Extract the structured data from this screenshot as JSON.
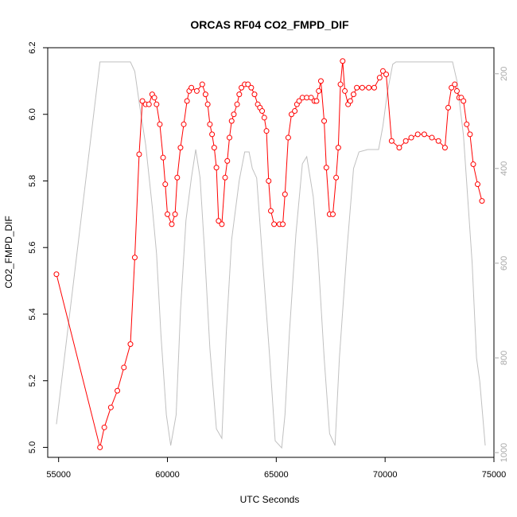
{
  "chart_data": {
    "type": "line",
    "title": "ORCAS RF04 CO2_FMPD_DIF",
    "xlabel": "UTC Seconds",
    "ylabel": "CO2_FMPD_DIF",
    "xlim": [
      54500,
      75000
    ],
    "ylim": [
      4.97,
      6.2
    ],
    "x_ticks": [
      55000,
      60000,
      65000,
      70000,
      75000
    ],
    "y_ticks": [
      5.0,
      5.2,
      5.4,
      5.6,
      5.8,
      6.0,
      6.2
    ],
    "y_tick_labels": [
      "5.0",
      "5.2",
      "5.4",
      "5.6",
      "5.8",
      "6.0",
      "6.2"
    ],
    "right_axis": {
      "lim": [
        1010,
        145
      ],
      "ticks": [
        200,
        400,
        600,
        800,
        1000
      ],
      "color": "#a9a9a9"
    },
    "grid": false,
    "series": [
      {
        "color": "#ff0000",
        "style": "line+open-circle",
        "points": [
          [
            54900,
            5.52
          ],
          [
            56900,
            5.0
          ],
          [
            57100,
            5.06
          ],
          [
            57400,
            5.12
          ],
          [
            57700,
            5.17
          ],
          [
            58000,
            5.24
          ],
          [
            58300,
            5.31
          ],
          [
            58500,
            5.57
          ],
          [
            58700,
            5.88
          ],
          [
            58850,
            6.04
          ],
          [
            59000,
            6.03
          ],
          [
            59150,
            6.03
          ],
          [
            59300,
            6.06
          ],
          [
            59400,
            6.05
          ],
          [
            59500,
            6.03
          ],
          [
            59650,
            5.97
          ],
          [
            59800,
            5.87
          ],
          [
            59900,
            5.79
          ],
          [
            60000,
            5.7
          ],
          [
            60200,
            5.67
          ],
          [
            60350,
            5.7
          ],
          [
            60450,
            5.81
          ],
          [
            60600,
            5.9
          ],
          [
            60750,
            5.97
          ],
          [
            60900,
            6.04
          ],
          [
            61000,
            6.07
          ],
          [
            61100,
            6.08
          ],
          [
            61350,
            6.07
          ],
          [
            61600,
            6.09
          ],
          [
            61750,
            6.06
          ],
          [
            61850,
            6.03
          ],
          [
            61950,
            5.97
          ],
          [
            62050,
            5.94
          ],
          [
            62150,
            5.9
          ],
          [
            62250,
            5.84
          ],
          [
            62350,
            5.68
          ],
          [
            62500,
            5.67
          ],
          [
            62650,
            5.81
          ],
          [
            62750,
            5.86
          ],
          [
            62850,
            5.93
          ],
          [
            62950,
            5.98
          ],
          [
            63050,
            6.0
          ],
          [
            63200,
            6.03
          ],
          [
            63300,
            6.06
          ],
          [
            63400,
            6.08
          ],
          [
            63550,
            6.09
          ],
          [
            63700,
            6.09
          ],
          [
            63850,
            6.08
          ],
          [
            64000,
            6.06
          ],
          [
            64150,
            6.03
          ],
          [
            64250,
            6.02
          ],
          [
            64350,
            6.01
          ],
          [
            64450,
            5.99
          ],
          [
            64550,
            5.95
          ],
          [
            64650,
            5.8
          ],
          [
            64750,
            5.71
          ],
          [
            64900,
            5.67
          ],
          [
            65150,
            5.67
          ],
          [
            65300,
            5.67
          ],
          [
            65400,
            5.76
          ],
          [
            65550,
            5.93
          ],
          [
            65700,
            6.0
          ],
          [
            65850,
            6.01
          ],
          [
            65950,
            6.03
          ],
          [
            66050,
            6.04
          ],
          [
            66200,
            6.05
          ],
          [
            66400,
            6.05
          ],
          [
            66600,
            6.05
          ],
          [
            66750,
            6.04
          ],
          [
            66850,
            6.04
          ],
          [
            66950,
            6.07
          ],
          [
            67050,
            6.1
          ],
          [
            67200,
            5.98
          ],
          [
            67300,
            5.84
          ],
          [
            67450,
            5.7
          ],
          [
            67600,
            5.7
          ],
          [
            67750,
            5.81
          ],
          [
            67850,
            5.9
          ],
          [
            67950,
            6.09
          ],
          [
            68050,
            6.16
          ],
          [
            68150,
            6.07
          ],
          [
            68300,
            6.03
          ],
          [
            68400,
            6.04
          ],
          [
            68550,
            6.06
          ],
          [
            68700,
            6.08
          ],
          [
            68950,
            6.08
          ],
          [
            69250,
            6.08
          ],
          [
            69500,
            6.08
          ],
          [
            69750,
            6.11
          ],
          [
            69900,
            6.13
          ],
          [
            70050,
            6.12
          ],
          [
            70300,
            5.92
          ],
          [
            70650,
            5.9
          ],
          [
            70950,
            5.92
          ],
          [
            71200,
            5.93
          ],
          [
            71500,
            5.94
          ],
          [
            71800,
            5.94
          ],
          [
            72150,
            5.93
          ],
          [
            72450,
            5.92
          ],
          [
            72750,
            5.9
          ],
          [
            72900,
            6.02
          ],
          [
            73050,
            6.08
          ],
          [
            73200,
            6.09
          ],
          [
            73300,
            6.07
          ],
          [
            73400,
            6.05
          ],
          [
            73500,
            6.05
          ],
          [
            73600,
            6.04
          ],
          [
            73750,
            5.97
          ],
          [
            73900,
            5.94
          ],
          [
            74050,
            5.85
          ],
          [
            74250,
            5.79
          ],
          [
            74450,
            5.74
          ]
        ]
      },
      {
        "color": "#c0c0c0",
        "axis": "right",
        "style": "line",
        "points": [
          [
            54900,
            940
          ],
          [
            56900,
            175
          ],
          [
            58300,
            175
          ],
          [
            58500,
            195
          ],
          [
            58700,
            260
          ],
          [
            59000,
            350
          ],
          [
            59300,
            480
          ],
          [
            59500,
            580
          ],
          [
            59700,
            750
          ],
          [
            59950,
            920
          ],
          [
            60150,
            985
          ],
          [
            60400,
            920
          ],
          [
            60600,
            700
          ],
          [
            60850,
            510
          ],
          [
            61100,
            420
          ],
          [
            61300,
            360
          ],
          [
            61500,
            420
          ],
          [
            61700,
            570
          ],
          [
            61950,
            780
          ],
          [
            62250,
            950
          ],
          [
            62500,
            970
          ],
          [
            62700,
            750
          ],
          [
            62950,
            550
          ],
          [
            63300,
            425
          ],
          [
            63550,
            365
          ],
          [
            63750,
            365
          ],
          [
            63900,
            400
          ],
          [
            64100,
            420
          ],
          [
            64350,
            580
          ],
          [
            64700,
            800
          ],
          [
            64950,
            975
          ],
          [
            65250,
            990
          ],
          [
            65400,
            920
          ],
          [
            65600,
            750
          ],
          [
            65900,
            540
          ],
          [
            66200,
            390
          ],
          [
            66400,
            375
          ],
          [
            66700,
            460
          ],
          [
            66900,
            570
          ],
          [
            67200,
            800
          ],
          [
            67450,
            960
          ],
          [
            67700,
            985
          ],
          [
            67900,
            800
          ],
          [
            68250,
            570
          ],
          [
            68550,
            400
          ],
          [
            68800,
            365
          ],
          [
            69200,
            360
          ],
          [
            69700,
            360
          ],
          [
            69900,
            310
          ],
          [
            70100,
            240
          ],
          [
            70350,
            180
          ],
          [
            70500,
            175
          ],
          [
            73100,
            175
          ],
          [
            73300,
            215
          ],
          [
            73600,
            330
          ],
          [
            74000,
            600
          ],
          [
            74200,
            800
          ],
          [
            74350,
            850
          ],
          [
            74600,
            985
          ]
        ]
      }
    ]
  }
}
